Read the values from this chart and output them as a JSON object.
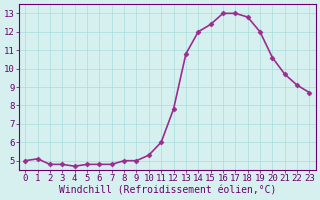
{
  "x": [
    0,
    1,
    2,
    3,
    4,
    5,
    6,
    7,
    8,
    9,
    10,
    11,
    12,
    13,
    14,
    15,
    16,
    17,
    18,
    19,
    20,
    21,
    22,
    23
  ],
  "y": [
    5.0,
    5.1,
    4.8,
    4.8,
    4.7,
    4.8,
    4.8,
    4.8,
    5.0,
    5.0,
    5.3,
    6.0,
    7.8,
    10.8,
    12.0,
    12.4,
    13.0,
    13.0,
    12.8,
    12.0,
    10.6,
    9.7,
    9.1,
    8.7
  ],
  "line_color": "#9b2d8e",
  "marker_color": "#9b2d8e",
  "bg_color": "#d6f0f0",
  "grid_color": "#aadddd",
  "xlabel": "Windchill (Refroidissement éolien,°C)",
  "xlim": [
    -0.5,
    23.5
  ],
  "ylim": [
    4.5,
    13.5
  ],
  "yticks": [
    5,
    6,
    7,
    8,
    9,
    10,
    11,
    12,
    13
  ],
  "xticks": [
    0,
    1,
    2,
    3,
    4,
    5,
    6,
    7,
    8,
    9,
    10,
    11,
    12,
    13,
    14,
    15,
    16,
    17,
    18,
    19,
    20,
    21,
    22,
    23
  ],
  "tick_label_color": "#6b006b",
  "axis_color": "#6b006b",
  "xlabel_color": "#6b006b",
  "xlabel_fontsize": 7,
  "tick_fontsize": 6.5,
  "linewidth": 1.2,
  "markersize": 2.5
}
